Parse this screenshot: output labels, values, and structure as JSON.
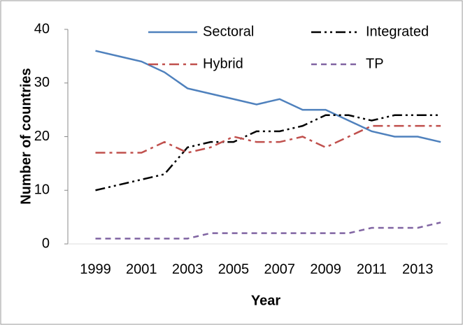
{
  "chart_data": {
    "type": "line",
    "x_label": "Year",
    "y_label": "Number of countries",
    "x": [
      1999,
      2000,
      2001,
      2002,
      2003,
      2004,
      2005,
      2006,
      2007,
      2008,
      2009,
      2010,
      2011,
      2012,
      2013,
      2014
    ],
    "series": [
      {
        "name": "Sectoral",
        "color": "#4f81bd",
        "values": [
          36,
          35,
          34,
          32,
          29,
          28,
          27,
          26,
          27,
          25,
          25,
          23,
          21,
          20,
          20,
          19
        ]
      },
      {
        "name": "Integrated",
        "color": "#000000",
        "values": [
          10,
          11,
          12,
          13,
          18,
          19,
          19,
          21,
          21,
          22,
          24,
          24,
          23,
          24,
          24,
          24
        ]
      },
      {
        "name": "Hybrid",
        "color": "#c0504d",
        "values": [
          17,
          17,
          17,
          19,
          17,
          18,
          20,
          19,
          19,
          20,
          18,
          20,
          22,
          22,
          22,
          22
        ]
      },
      {
        "name": "TP",
        "color": "#8064a2",
        "values": [
          1,
          1,
          1,
          1,
          1,
          2,
          2,
          2,
          2,
          2,
          2,
          2,
          3,
          3,
          3,
          4
        ]
      }
    ],
    "xlim": [
      1997.8,
      2014.3
    ],
    "xticks": [
      1999,
      2001,
      2003,
      2005,
      2007,
      2009,
      2011,
      2013
    ],
    "ylim": [
      0,
      40
    ],
    "yticks": [
      0,
      10,
      20,
      30,
      40
    ],
    "grid": false
  }
}
